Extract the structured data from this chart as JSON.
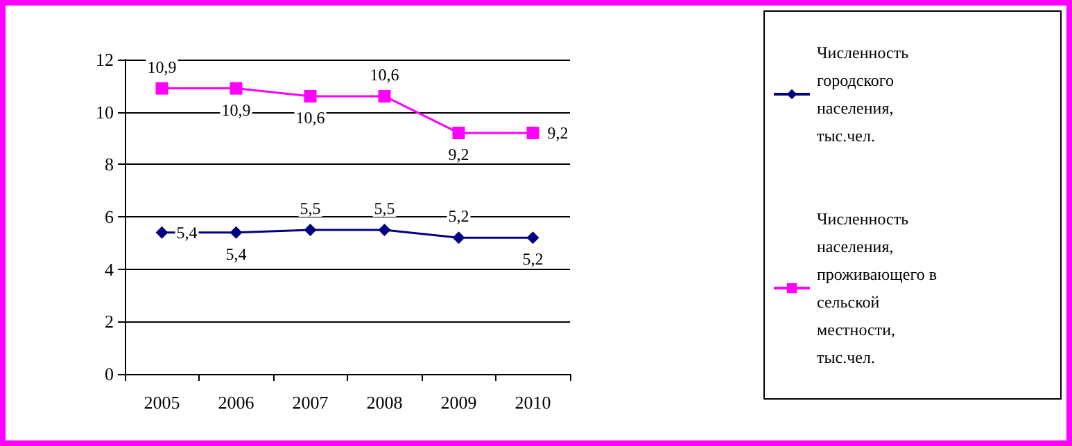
{
  "chart_data": {
    "type": "line",
    "categories": [
      "2005",
      "2006",
      "2007",
      "2008",
      "2009",
      "2010"
    ],
    "series": [
      {
        "name": "Численность городского населения, тыс.чел.",
        "color": "#000080",
        "marker": "diamond",
        "values": [
          5.4,
          5.4,
          5.5,
          5.5,
          5.2,
          5.2
        ],
        "value_labels": [
          "5,4",
          "5,4",
          "5,5",
          "5,5",
          "5,2",
          "5,2"
        ]
      },
      {
        "name": "Численность населения, проживающего в сельской местности, тыс.чел.",
        "color": "#ff00ff",
        "marker": "square",
        "values": [
          10.9,
          10.9,
          10.6,
          10.6,
          9.2,
          9.2
        ],
        "value_labels": [
          "10,9",
          "10,9",
          "10,6",
          "10,6",
          "9,2",
          "9,2"
        ]
      }
    ],
    "ylim": [
      0,
      12
    ],
    "yticks": [
      0,
      2,
      4,
      6,
      8,
      10,
      12
    ],
    "grid": "y",
    "legend": "right"
  }
}
